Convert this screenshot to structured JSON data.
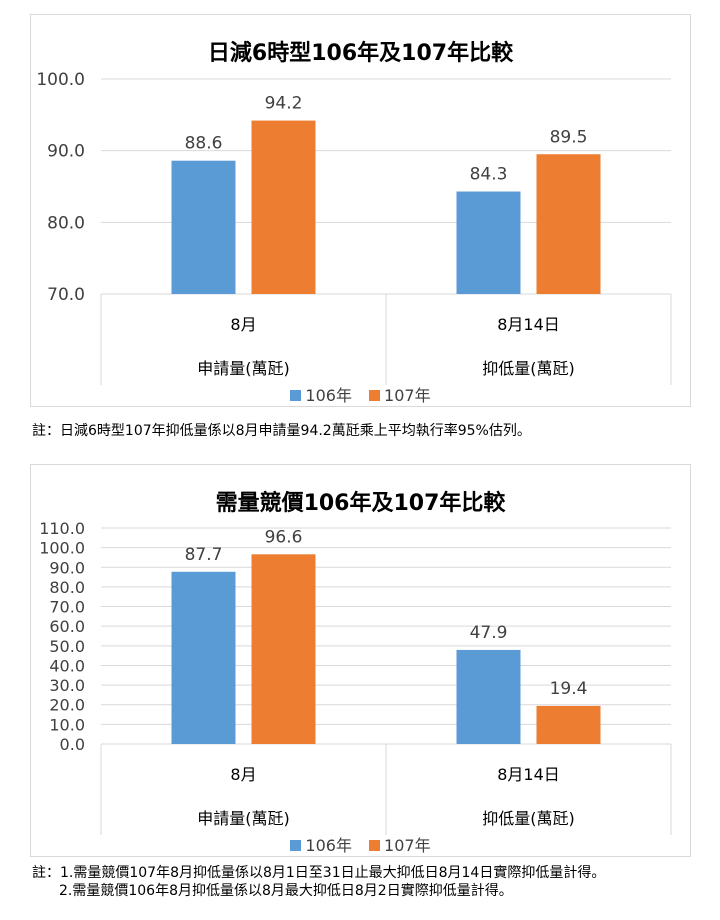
{
  "chart_data": [
    {
      "type": "bar",
      "title": "日減6時型106年及107年比較",
      "categories": [
        "8月",
        "8月14日"
      ],
      "group_labels": [
        "申請量(萬瓩)",
        "抑低量(萬瓩)"
      ],
      "series": [
        {
          "name": "106年",
          "values": [
            88.6,
            84.3
          ],
          "labels": [
            "88.6",
            "84.3"
          ],
          "color": "#5b9bd5"
        },
        {
          "name": "107年",
          "values": [
            94.2,
            89.5
          ],
          "labels": [
            "94.2",
            "89.5"
          ],
          "color": "#ed7d31"
        }
      ],
      "ylim": [
        70,
        100
      ],
      "yticks": [
        "70.0",
        "80.0",
        "90.0",
        "100.0"
      ],
      "grid": true,
      "legend": "bottom"
    },
    {
      "type": "bar",
      "title": "需量競價106年及107年比較",
      "categories": [
        "8月",
        "8月14日"
      ],
      "group_labels": [
        "申請量(萬瓩)",
        "抑低量(萬瓩)"
      ],
      "series": [
        {
          "name": "106年",
          "values": [
            87.7,
            47.9
          ],
          "labels": [
            "87.7",
            "47.9"
          ],
          "color": "#5b9bd5"
        },
        {
          "name": "107年",
          "values": [
            96.6,
            19.4
          ],
          "labels": [
            "96.6",
            "19.4"
          ],
          "color": "#ed7d31"
        }
      ],
      "ylim": [
        0,
        110
      ],
      "yticks": [
        "0.0",
        "10.0",
        "20.0",
        "30.0",
        "40.0",
        "50.0",
        "60.0",
        "70.0",
        "80.0",
        "90.0",
        "100.0",
        "110.0"
      ],
      "grid": true,
      "legend": "bottom"
    }
  ],
  "notes": {
    "note1": "註：日減6時型107年抑低量係以8月申請量94.2萬瓩乘上平均執行率95%估列。",
    "note2_line1": "註：1.需量競價107年8月抑低量係以8月1日至31日止最大抑低日8月14日實際抑低量計得。",
    "note2_line2": "2.需量競價106年8月抑低量係以8月最大抑低日8月2日實際抑低量計得。"
  }
}
